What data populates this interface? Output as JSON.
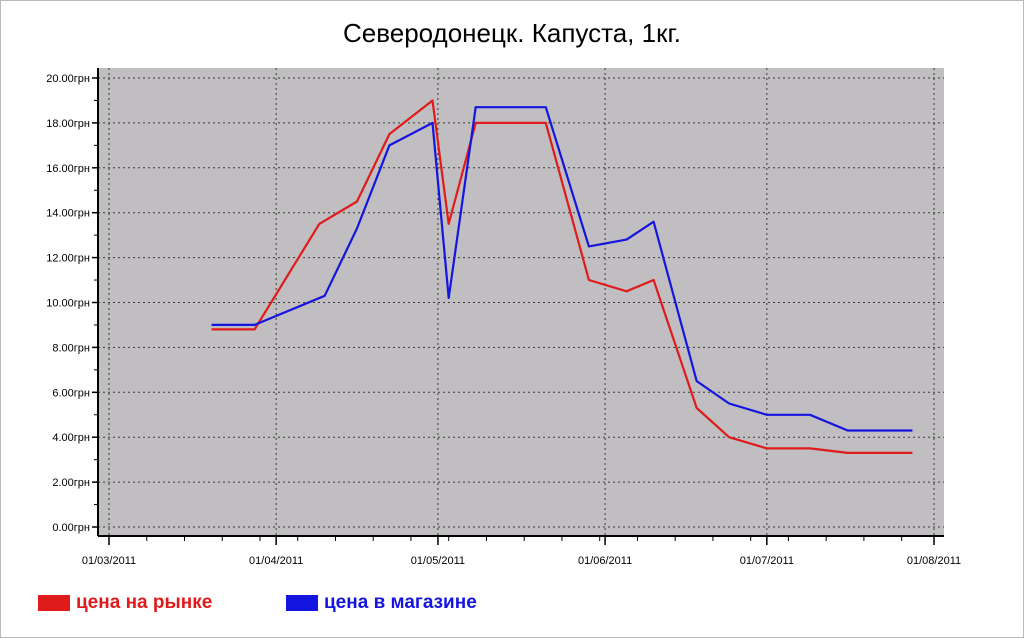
{
  "chart_data": {
    "type": "line",
    "title": "Северодонецк. Капуста, 1кг.",
    "xlabel": "",
    "ylabel": "",
    "ylim": [
      0,
      20
    ],
    "y_ticks": [
      "0.00грн",
      "2.00грн",
      "4.00грн",
      "6.00грн",
      "8.00грн",
      "10.00грн",
      "12.00грн",
      "14.00грн",
      "16.00грн",
      "18.00грн",
      "20.00грн"
    ],
    "x_ticks": [
      "01/03/2011",
      "01/04/2011",
      "01/05/2011",
      "01/06/2011",
      "01/07/2011",
      "01/08/2011"
    ],
    "x_range": [
      "2011-03-01",
      "2011-08-01"
    ],
    "grid": true,
    "legend_position": "bottom-left",
    "series": [
      {
        "name": "цена на рынке",
        "color": "#e01b1b",
        "points": [
          [
            "2011-03-20",
            8.8
          ],
          [
            "2011-03-28",
            8.8
          ],
          [
            "2011-04-09",
            13.5
          ],
          [
            "2011-04-16",
            14.5
          ],
          [
            "2011-04-22",
            17.5
          ],
          [
            "2011-04-30",
            19.0
          ],
          [
            "2011-05-03",
            13.5
          ],
          [
            "2011-05-08",
            18.0
          ],
          [
            "2011-05-21",
            18.0
          ],
          [
            "2011-05-29",
            11.0
          ],
          [
            "2011-06-05",
            10.5
          ],
          [
            "2011-06-10",
            11.0
          ],
          [
            "2011-06-18",
            5.3
          ],
          [
            "2011-06-24",
            4.0
          ],
          [
            "2011-07-01",
            3.5
          ],
          [
            "2011-07-09",
            3.5
          ],
          [
            "2011-07-16",
            3.3
          ],
          [
            "2011-07-28",
            3.3
          ]
        ]
      },
      {
        "name": "цена в магазине",
        "color": "#1515e0",
        "points": [
          [
            "2011-03-20",
            9.0
          ],
          [
            "2011-03-28",
            9.0
          ],
          [
            "2011-04-10",
            10.3
          ],
          [
            "2011-04-16",
            13.3
          ],
          [
            "2011-04-22",
            17.0
          ],
          [
            "2011-04-30",
            18.0
          ],
          [
            "2011-05-03",
            10.2
          ],
          [
            "2011-05-08",
            18.7
          ],
          [
            "2011-05-21",
            18.7
          ],
          [
            "2011-05-29",
            12.5
          ],
          [
            "2011-06-05",
            12.8
          ],
          [
            "2011-06-10",
            13.6
          ],
          [
            "2011-06-18",
            6.5
          ],
          [
            "2011-06-24",
            5.5
          ],
          [
            "2011-07-01",
            5.0
          ],
          [
            "2011-07-09",
            5.0
          ],
          [
            "2011-07-16",
            4.3
          ],
          [
            "2011-07-28",
            4.3
          ]
        ]
      }
    ],
    "colors": {
      "plot_background": "#c0bec0",
      "grid": "#3a3a3a",
      "axis": "#000000"
    }
  }
}
